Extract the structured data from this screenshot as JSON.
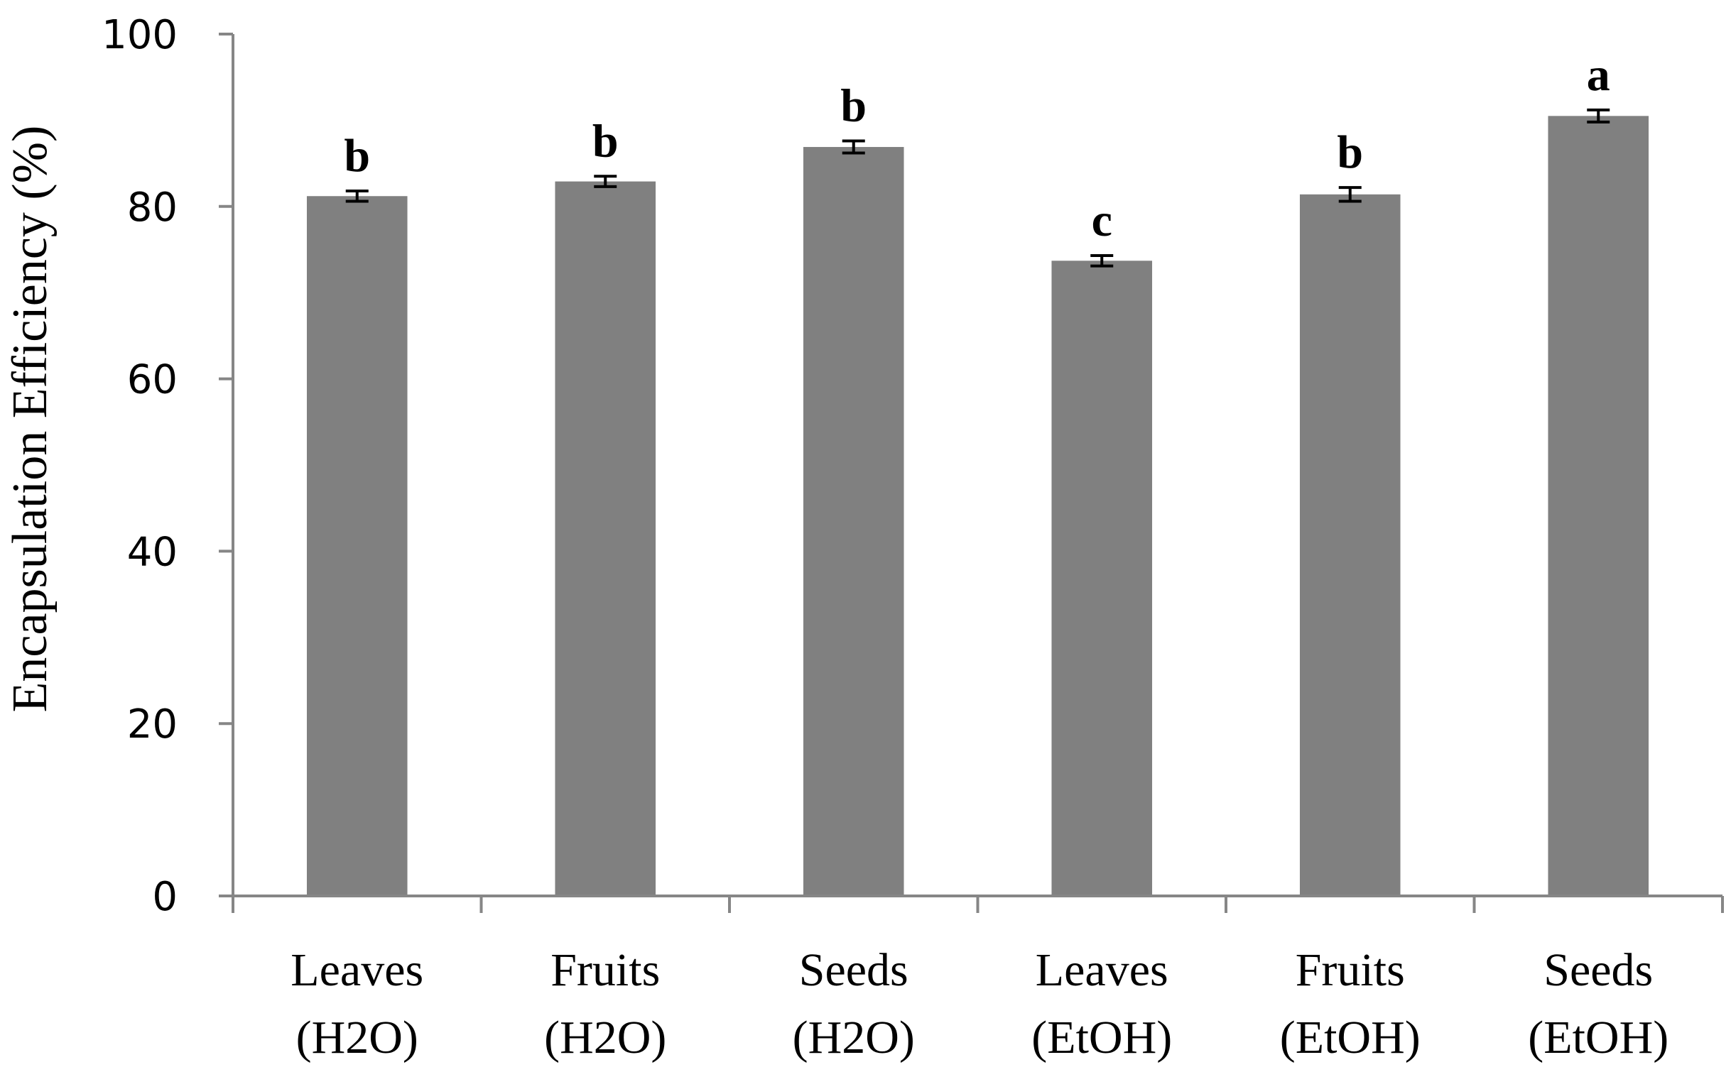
{
  "chart_data": {
    "type": "bar",
    "title": "",
    "xlabel": "",
    "ylabel": "Encapsulation Efficiency (%)",
    "ylim": [
      0,
      100
    ],
    "yticks": [
      0,
      20,
      40,
      60,
      80,
      100
    ],
    "grid": false,
    "legend": "none",
    "bar_color": "#808080",
    "categories": [
      {
        "line1": "Leaves",
        "line2": "(H2O)"
      },
      {
        "line1": "Fruits",
        "line2": "(H2O)"
      },
      {
        "line1": "Seeds",
        "line2": "(H2O)"
      },
      {
        "line1": "Leaves",
        "line2": "(EtOH)"
      },
      {
        "line1": "Fruits",
        "line2": "(EtOH)"
      },
      {
        "line1": "Seeds",
        "line2": "(EtOH)"
      }
    ],
    "values": [
      81.2,
      82.9,
      86.9,
      73.7,
      81.4,
      90.5
    ],
    "errors": [
      0.6,
      0.6,
      0.7,
      0.6,
      0.8,
      0.7
    ],
    "significance": [
      "b",
      "b",
      "b",
      "c",
      "b",
      "a"
    ]
  }
}
